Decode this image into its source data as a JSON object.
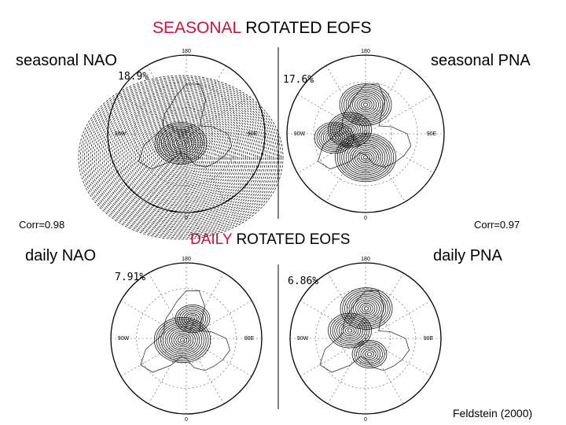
{
  "seasonal_title": {
    "highlight": "SEASONAL",
    "rest": " ROTATED EOFS"
  },
  "daily_title": {
    "highlight": "DAILY",
    "rest": " ROTATED EOFS"
  },
  "panels": {
    "seasonal_nao": {
      "label": "seasonal NAO",
      "percent": "18.9%"
    },
    "seasonal_pna": {
      "label": "seasonal PNA",
      "percent": "17.6%"
    },
    "daily_nao": {
      "label": "daily NAO",
      "percent": "7.91%"
    },
    "daily_pna": {
      "label": "daily PNA",
      "percent": "6.86%"
    }
  },
  "correlations": {
    "nao": "Corr=0.98",
    "pna": "Corr=0.97"
  },
  "map_labels": {
    "top": "180",
    "bottom": "0",
    "left": "90W",
    "right": "90E"
  },
  "citation": "Feldstein (2000)",
  "colors": {
    "highlight": "#d0103a"
  }
}
